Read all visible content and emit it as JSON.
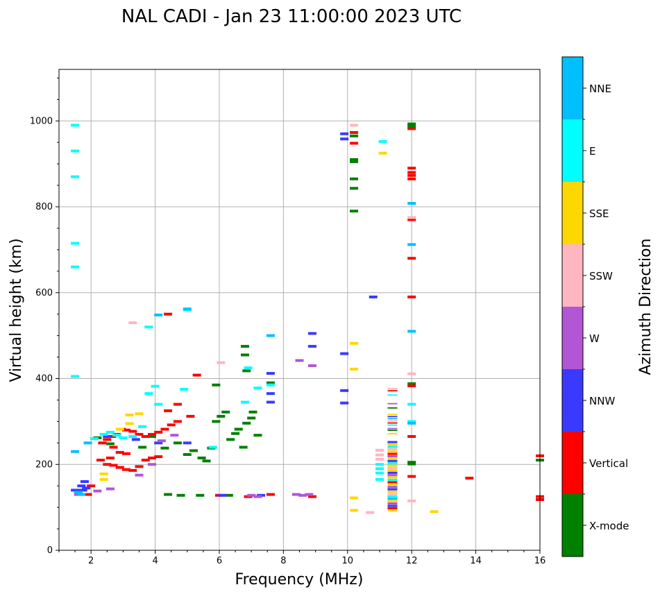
{
  "chart_data": {
    "type": "scatter",
    "title": "NAL CADI - Jan 23 11:00:00 2023 UTC",
    "xlabel": "Frequency (MHz)",
    "ylabel": "Virtual height (km)",
    "xlim": [
      1,
      16
    ],
    "ylim": [
      0,
      1120
    ],
    "xticks": [
      2,
      4,
      6,
      8,
      10,
      12,
      14,
      16
    ],
    "yticks": [
      0,
      200,
      400,
      600,
      800,
      1000
    ],
    "grid": true,
    "colorbar": {
      "label": "Azimuth Direction",
      "categories": [
        "X-mode",
        "Vertical",
        "NNW",
        "W",
        "SSW",
        "SSE",
        "E",
        "NNE"
      ],
      "colors": [
        "#008000",
        "#ff0000",
        "#3a3aff",
        "#b256d6",
        "#ffb6c1",
        "#ffd700",
        "#00ffff",
        "#00bfff"
      ]
    },
    "series": [
      {
        "name": "X-mode",
        "points": [
          [
            3.6,
            240
          ],
          [
            3.9,
            265
          ],
          [
            4.3,
            238
          ],
          [
            4.7,
            250
          ],
          [
            5.0,
            223
          ],
          [
            5.2,
            232
          ],
          [
            5.45,
            215
          ],
          [
            5.6,
            208
          ],
          [
            5.75,
            238
          ],
          [
            5.9,
            300
          ],
          [
            6.05,
            312
          ],
          [
            6.2,
            322
          ],
          [
            6.35,
            258
          ],
          [
            6.5,
            272
          ],
          [
            6.6,
            282
          ],
          [
            6.75,
            240
          ],
          [
            6.85,
            296
          ],
          [
            7.0,
            308
          ],
          [
            7.2,
            268
          ],
          [
            7.05,
            322
          ],
          [
            6.8,
            455
          ],
          [
            6.8,
            475
          ],
          [
            6.85,
            418
          ],
          [
            7.6,
            390
          ],
          [
            5.9,
            385
          ],
          [
            4.4,
            130
          ],
          [
            4.8,
            128
          ],
          [
            5.4,
            128
          ],
          [
            6.3,
            128
          ],
          [
            10.2,
            965
          ],
          [
            10.2,
            910
          ],
          [
            10.2,
            905
          ],
          [
            10.2,
            865
          ],
          [
            10.2,
            843
          ],
          [
            10.2,
            790
          ],
          [
            12.0,
            993
          ],
          [
            12.0,
            988
          ],
          [
            12.0,
            388
          ],
          [
            12.0,
            205
          ],
          [
            12.0,
            201
          ],
          [
            16.0,
            210
          ],
          [
            2.2,
            262
          ],
          [
            2.6,
            248
          ]
        ]
      },
      {
        "name": "Vertical",
        "points": [
          [
            2.35,
            250
          ],
          [
            2.5,
            258
          ],
          [
            2.65,
            265
          ],
          [
            2.8,
            270
          ],
          [
            2.95,
            282
          ],
          [
            3.1,
            280
          ],
          [
            3.3,
            277
          ],
          [
            3.5,
            270
          ],
          [
            3.7,
            265
          ],
          [
            3.9,
            270
          ],
          [
            4.1,
            275
          ],
          [
            4.3,
            282
          ],
          [
            4.5,
            292
          ],
          [
            4.7,
            300
          ],
          [
            2.7,
            240
          ],
          [
            2.9,
            228
          ],
          [
            3.1,
            225
          ],
          [
            2.7,
            198
          ],
          [
            2.9,
            193
          ],
          [
            3.1,
            188
          ],
          [
            3.3,
            186
          ],
          [
            3.5,
            195
          ],
          [
            3.7,
            210
          ],
          [
            3.9,
            215
          ],
          [
            4.1,
            218
          ],
          [
            2.5,
            200
          ],
          [
            2.3,
            210
          ],
          [
            2.6,
            215
          ],
          [
            4.4,
            325
          ],
          [
            4.7,
            340
          ],
          [
            5.1,
            312
          ],
          [
            5.3,
            408
          ],
          [
            4.4,
            550
          ],
          [
            6.0,
            128
          ],
          [
            6.9,
            125
          ],
          [
            7.6,
            130
          ],
          [
            8.9,
            125
          ],
          [
            10.2,
            973
          ],
          [
            10.2,
            948
          ],
          [
            12.0,
            982
          ],
          [
            12.0,
            890
          ],
          [
            12.0,
            880
          ],
          [
            12.0,
            873
          ],
          [
            12.0,
            865
          ],
          [
            12.0,
            770
          ],
          [
            12.0,
            680
          ],
          [
            12.0,
            590
          ],
          [
            12.0,
            383
          ],
          [
            12.0,
            265
          ],
          [
            12.0,
            172
          ],
          [
            13.8,
            168
          ],
          [
            16.0,
            220
          ],
          [
            16.0,
            125
          ],
          [
            16.0,
            118
          ],
          [
            2.0,
            150
          ],
          [
            1.9,
            130
          ]
        ]
      },
      {
        "name": "NNW",
        "points": [
          [
            1.5,
            140
          ],
          [
            1.6,
            135
          ],
          [
            1.7,
            150
          ],
          [
            1.8,
            160
          ],
          [
            2.5,
            265
          ],
          [
            3.4,
            258
          ],
          [
            4.1,
            250
          ],
          [
            5.0,
            250
          ],
          [
            6.1,
            128
          ],
          [
            7.3,
            128
          ],
          [
            7.6,
            345
          ],
          [
            7.6,
            365
          ],
          [
            7.6,
            412
          ],
          [
            8.9,
            475
          ],
          [
            8.9,
            505
          ],
          [
            9.9,
            970
          ],
          [
            9.9,
            958
          ],
          [
            9.9,
            458
          ],
          [
            9.9,
            372
          ],
          [
            9.9,
            343
          ],
          [
            10.8,
            590
          ],
          [
            1.75,
            140
          ],
          [
            1.85,
            145
          ]
        ]
      },
      {
        "name": "W",
        "points": [
          [
            3.5,
            175
          ],
          [
            3.9,
            200
          ],
          [
            4.2,
            255
          ],
          [
            4.6,
            268
          ],
          [
            7.0,
            128
          ],
          [
            7.2,
            125
          ],
          [
            8.4,
            130
          ],
          [
            8.6,
            128
          ],
          [
            8.8,
            130
          ],
          [
            8.5,
            442
          ],
          [
            8.9,
            430
          ],
          [
            2.2,
            138
          ],
          [
            2.6,
            143
          ],
          [
            1.6,
            130
          ]
        ]
      },
      {
        "name": "SSW",
        "points": [
          [
            3.3,
            530
          ],
          [
            6.05,
            437
          ],
          [
            10.2,
            990
          ],
          [
            10.7,
            88
          ],
          [
            11.0,
            233
          ],
          [
            11.0,
            222
          ],
          [
            11.0,
            212
          ],
          [
            12.0,
            775
          ],
          [
            12.0,
            411
          ],
          [
            12.0,
            115
          ]
        ]
      },
      {
        "name": "SSE",
        "points": [
          [
            2.9,
            282
          ],
          [
            3.2,
            295
          ],
          [
            3.5,
            318
          ],
          [
            3.2,
            315
          ],
          [
            10.2,
            482
          ],
          [
            10.2,
            422
          ],
          [
            10.2,
            122
          ],
          [
            10.2,
            93
          ],
          [
            11.1,
            925
          ],
          [
            12.7,
            90
          ],
          [
            2.4,
            165
          ],
          [
            2.4,
            178
          ]
        ]
      },
      {
        "name": "E",
        "points": [
          [
            1.5,
            990
          ],
          [
            1.5,
            930
          ],
          [
            1.5,
            870
          ],
          [
            1.5,
            715
          ],
          [
            1.5,
            660
          ],
          [
            1.5,
            405
          ],
          [
            2.4,
            270
          ],
          [
            2.6,
            275
          ],
          [
            2.8,
            268
          ],
          [
            3.0,
            262
          ],
          [
            3.3,
            265
          ],
          [
            3.8,
            365
          ],
          [
            4.0,
            382
          ],
          [
            4.1,
            340
          ],
          [
            4.9,
            375
          ],
          [
            5.0,
            560
          ],
          [
            5.8,
            240
          ],
          [
            6.8,
            345
          ],
          [
            6.9,
            425
          ],
          [
            7.2,
            378
          ],
          [
            7.6,
            385
          ],
          [
            3.8,
            520
          ],
          [
            3.6,
            288
          ],
          [
            11.0,
            165
          ],
          [
            11.0,
            180
          ],
          [
            11.0,
            190
          ],
          [
            11.0,
            200
          ],
          [
            11.1,
            952
          ],
          [
            12.0,
            300
          ],
          [
            12.0,
            340
          ],
          [
            2.1,
            260
          ]
        ]
      },
      {
        "name": "NNE",
        "points": [
          [
            1.5,
            230
          ],
          [
            1.9,
            250
          ],
          [
            4.1,
            548
          ],
          [
            5.0,
            562
          ],
          [
            7.6,
            500
          ],
          [
            12.0,
            808
          ],
          [
            12.0,
            712
          ],
          [
            12.0,
            510
          ],
          [
            12.0,
            296
          ],
          [
            1.6,
            135
          ],
          [
            1.7,
            130
          ]
        ]
      }
    ]
  }
}
